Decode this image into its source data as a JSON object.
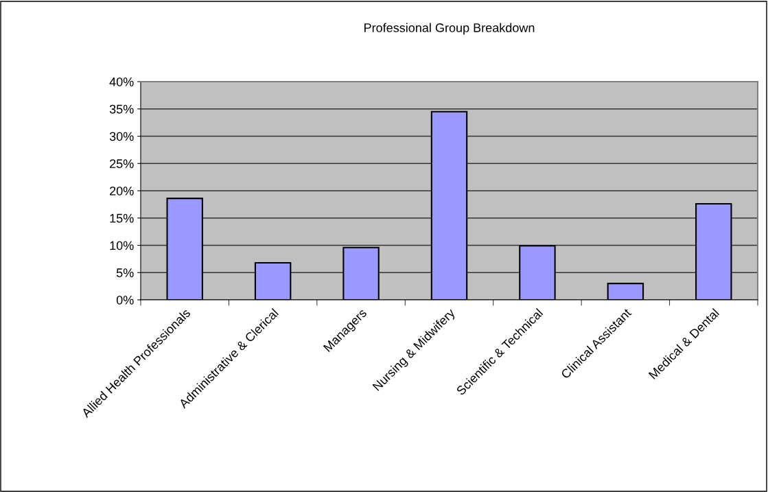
{
  "chart_data": {
    "type": "bar",
    "title": "Professional Group Breakdown",
    "categories": [
      "Allied Health Professionals",
      "Administrative & Clerical",
      "Managers",
      "Nursing & Midwifery",
      "Scientific & Technical",
      "Clinical Assistant",
      "Medical & Dental"
    ],
    "values": [
      18.6,
      6.8,
      9.6,
      34.5,
      9.9,
      3.0,
      17.6
    ],
    "color": "#9999ff",
    "ylim": [
      0,
      40
    ],
    "yticks": [
      {
        "value": 0,
        "label": "0%"
      },
      {
        "value": 5,
        "label": "5%"
      },
      {
        "value": 10,
        "label": "10%"
      },
      {
        "value": 15,
        "label": "15%"
      },
      {
        "value": 20,
        "label": "20%"
      },
      {
        "value": 25,
        "label": "25%"
      },
      {
        "value": 30,
        "label": "30%"
      },
      {
        "value": 35,
        "label": "35%"
      },
      {
        "value": 40,
        "label": "40%"
      }
    ],
    "grid": "y",
    "legend": false
  }
}
